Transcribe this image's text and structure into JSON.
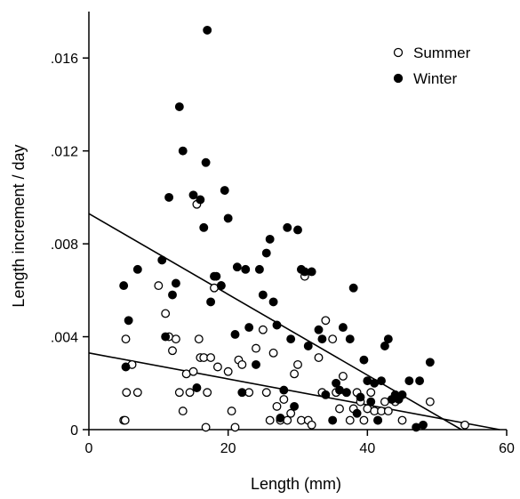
{
  "chart_data": {
    "type": "scatter",
    "title": "",
    "xlabel": "Length (mm)",
    "ylabel": "Length increment / day",
    "xlim": [
      0,
      60
    ],
    "ylim": [
      0,
      0.018
    ],
    "xticks": [
      0,
      20,
      40,
      60
    ],
    "xtick_labels": [
      "0",
      "20",
      "40",
      "60"
    ],
    "yticks": [
      0,
      0.004,
      0.008,
      0.012,
      0.016
    ],
    "ytick_labels": [
      "0",
      ".004",
      ".008",
      ".012",
      ".016"
    ],
    "grid": false,
    "legend_position": "top-right",
    "series": [
      {
        "name": "Summer",
        "marker": "open-circle",
        "color": "#000000",
        "points": [
          [
            5.0,
            0.0004
          ],
          [
            5.2,
            0.0004
          ],
          [
            5.3,
            0.0039
          ],
          [
            5.4,
            0.0016
          ],
          [
            6.2,
            0.0028
          ],
          [
            7.0,
            0.0016
          ],
          [
            10.0,
            0.0062
          ],
          [
            11.0,
            0.005
          ],
          [
            11.5,
            0.004
          ],
          [
            12.0,
            0.0034
          ],
          [
            12.5,
            0.0039
          ],
          [
            13.0,
            0.0016
          ],
          [
            13.5,
            0.0008
          ],
          [
            14.0,
            0.0024
          ],
          [
            14.5,
            0.0016
          ],
          [
            15.0,
            0.0025
          ],
          [
            15.5,
            0.0097
          ],
          [
            15.8,
            0.0039
          ],
          [
            16.0,
            0.0031
          ],
          [
            16.5,
            0.0031
          ],
          [
            16.8,
            0.0001
          ],
          [
            17.0,
            0.0016
          ],
          [
            17.5,
            0.0031
          ],
          [
            18.0,
            0.0061
          ],
          [
            18.5,
            0.0027
          ],
          [
            19.0,
            0.0062
          ],
          [
            20.0,
            0.0025
          ],
          [
            20.5,
            0.0008
          ],
          [
            21.0,
            0.0001
          ],
          [
            21.5,
            0.003
          ],
          [
            22.0,
            0.0028
          ],
          [
            23.0,
            0.0016
          ],
          [
            24.0,
            0.0035
          ],
          [
            25.0,
            0.0043
          ],
          [
            25.5,
            0.0016
          ],
          [
            26.0,
            0.0004
          ],
          [
            26.5,
            0.0033
          ],
          [
            27.0,
            0.001
          ],
          [
            27.5,
            0.0004
          ],
          [
            28.0,
            0.0013
          ],
          [
            28.5,
            0.0004
          ],
          [
            29.0,
            0.0007
          ],
          [
            29.5,
            0.0024
          ],
          [
            30.0,
            0.0028
          ],
          [
            30.5,
            0.0004
          ],
          [
            31.0,
            0.0066
          ],
          [
            31.5,
            0.0004
          ],
          [
            32.0,
            0.0002
          ],
          [
            33.0,
            0.0031
          ],
          [
            33.5,
            0.0016
          ],
          [
            34.0,
            0.0047
          ],
          [
            35.0,
            0.0039
          ],
          [
            35.5,
            0.0016
          ],
          [
            36.0,
            0.0009
          ],
          [
            36.5,
            0.0023
          ],
          [
            37.0,
            0.0016
          ],
          [
            37.5,
            0.0004
          ],
          [
            38.0,
            0.0009
          ],
          [
            38.5,
            0.0016
          ],
          [
            39.0,
            0.0012
          ],
          [
            39.5,
            0.0004
          ],
          [
            40.0,
            0.0009
          ],
          [
            40.5,
            0.0016
          ],
          [
            41.0,
            0.0008
          ],
          [
            41.5,
            0.0004
          ],
          [
            42.0,
            0.0008
          ],
          [
            42.5,
            0.0012
          ],
          [
            43.0,
            0.0008
          ],
          [
            44.0,
            0.0012
          ],
          [
            45.0,
            0.0004
          ],
          [
            49.0,
            0.0012
          ],
          [
            54.0,
            0.0002
          ]
        ]
      },
      {
        "name": "Winter",
        "marker": "filled-circle",
        "color": "#000000",
        "points": [
          [
            5.0,
            0.0062
          ],
          [
            5.3,
            0.0027
          ],
          [
            5.7,
            0.0047
          ],
          [
            7.0,
            0.0069
          ],
          [
            10.5,
            0.0073
          ],
          [
            11.0,
            0.004
          ],
          [
            11.5,
            0.01
          ],
          [
            12.0,
            0.0058
          ],
          [
            12.5,
            0.0063
          ],
          [
            13.0,
            0.0139
          ],
          [
            13.5,
            0.012
          ],
          [
            15.0,
            0.0101
          ],
          [
            15.5,
            0.0018
          ],
          [
            16.0,
            0.0099
          ],
          [
            16.5,
            0.0087
          ],
          [
            16.8,
            0.0115
          ],
          [
            17.0,
            0.0172
          ],
          [
            17.5,
            0.0055
          ],
          [
            18.0,
            0.0066
          ],
          [
            18.3,
            0.0066
          ],
          [
            19.0,
            0.0062
          ],
          [
            19.5,
            0.0103
          ],
          [
            20.0,
            0.0091
          ],
          [
            21.0,
            0.0041
          ],
          [
            21.3,
            0.007
          ],
          [
            22.0,
            0.0016
          ],
          [
            22.5,
            0.0069
          ],
          [
            23.0,
            0.0044
          ],
          [
            24.0,
            0.0028
          ],
          [
            24.5,
            0.0069
          ],
          [
            25.0,
            0.0058
          ],
          [
            25.5,
            0.0076
          ],
          [
            26.0,
            0.0082
          ],
          [
            26.5,
            0.0055
          ],
          [
            27.0,
            0.0045
          ],
          [
            27.5,
            0.0005
          ],
          [
            28.0,
            0.0017
          ],
          [
            28.5,
            0.0087
          ],
          [
            29.0,
            0.0039
          ],
          [
            29.5,
            0.001
          ],
          [
            30.0,
            0.0086
          ],
          [
            30.5,
            0.0069
          ],
          [
            31.0,
            0.0068
          ],
          [
            31.5,
            0.0036
          ],
          [
            32.0,
            0.0068
          ],
          [
            33.0,
            0.0043
          ],
          [
            33.5,
            0.0039
          ],
          [
            34.0,
            0.0015
          ],
          [
            35.0,
            0.0004
          ],
          [
            35.5,
            0.002
          ],
          [
            36.0,
            0.0017
          ],
          [
            36.5,
            0.0044
          ],
          [
            37.0,
            0.0016
          ],
          [
            37.5,
            0.0039
          ],
          [
            38.0,
            0.0061
          ],
          [
            38.5,
            0.0007
          ],
          [
            39.0,
            0.0014
          ],
          [
            39.5,
            0.003
          ],
          [
            40.0,
            0.0021
          ],
          [
            40.5,
            0.0012
          ],
          [
            41.0,
            0.002
          ],
          [
            41.5,
            0.0004
          ],
          [
            42.0,
            0.0021
          ],
          [
            42.5,
            0.0036
          ],
          [
            43.0,
            0.0039
          ],
          [
            43.5,
            0.0013
          ],
          [
            44.0,
            0.0015
          ],
          [
            44.5,
            0.0013
          ],
          [
            45.0,
            0.0015
          ],
          [
            46.0,
            0.0021
          ],
          [
            47.0,
            0.0001
          ],
          [
            47.5,
            0.0021
          ],
          [
            48.0,
            0.0002
          ],
          [
            49.0,
            0.0029
          ]
        ]
      }
    ],
    "regression_lines": [
      {
        "series": "Winter",
        "from": [
          0,
          0.0093
        ],
        "to": [
          53.5,
          0
        ]
      },
      {
        "series": "Summer",
        "from": [
          0,
          0.0033
        ],
        "to": [
          59,
          0
        ]
      }
    ]
  }
}
